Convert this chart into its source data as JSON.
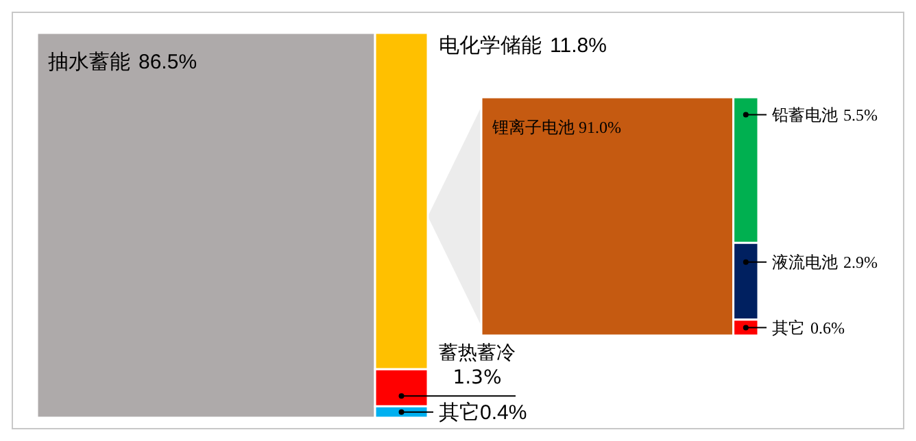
{
  "chart_data": [
    {
      "type": "other",
      "categories": [
        "抽水蓄能",
        "电化学储能",
        "蓄热蓄冷",
        "其它"
      ],
      "values": [
        86.5,
        11.8,
        1.3,
        0.4
      ],
      "value_labels": [
        "86.5%",
        "11.8%",
        "1.3%",
        "0.4%"
      ],
      "colors": [
        "#aeaaaa",
        "#ffc000",
        "#ff0000",
        "#00b0f0"
      ]
    },
    {
      "type": "other",
      "categories": [
        "锂离子电池",
        "铅蓄电池",
        "液流电池",
        "其它"
      ],
      "values": [
        91.0,
        5.5,
        2.9,
        0.6
      ],
      "value_labels": [
        "91.0%",
        "5.5%",
        "2.9%",
        "0.6%"
      ],
      "colors": [
        "#c55a11",
        "#00b050",
        "#002060",
        "#ff0000"
      ]
    }
  ]
}
